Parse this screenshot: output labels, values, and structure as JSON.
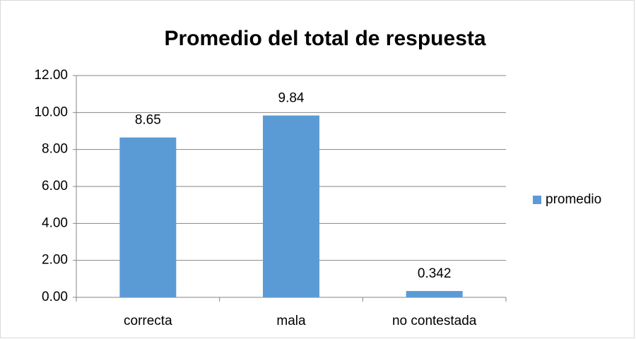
{
  "chart_data": {
    "type": "bar",
    "title": "Promedio del total de respuesta",
    "categories": [
      "correcta",
      "mala",
      "no contestada"
    ],
    "series": [
      {
        "name": "promedio",
        "color": "#5b9bd5",
        "values": [
          8.65,
          9.84,
          0.342
        ]
      }
    ],
    "ylim": [
      0,
      12
    ],
    "yticks": [
      {
        "value": 0,
        "label": "0.00"
      },
      {
        "value": 2,
        "label": "2.00"
      },
      {
        "value": 4,
        "label": "4.00"
      },
      {
        "value": 6,
        "label": "6.00"
      },
      {
        "value": 8,
        "label": "8.00"
      },
      {
        "value": 10,
        "label": "10.00"
      },
      {
        "value": 12,
        "label": "12.00"
      }
    ],
    "grid": true,
    "legend": "right"
  }
}
